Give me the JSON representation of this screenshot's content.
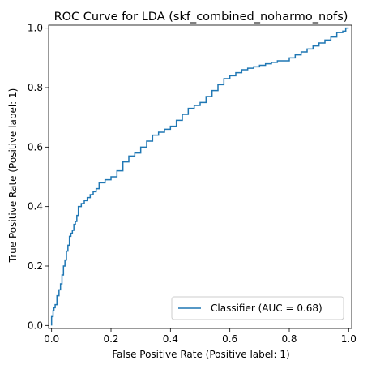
{
  "chart_data": {
    "type": "line",
    "title": "ROC Curve for LDA (skf_combined_noharmo_nofs)",
    "xlabel": "False Positive Rate (Positive label: 1)",
    "ylabel": "True Positive Rate (Positive label: 1)",
    "xlim": [
      -0.01,
      1.01
    ],
    "ylim": [
      -0.01,
      1.01
    ],
    "xticks": [
      0.0,
      0.2,
      0.4,
      0.6,
      0.8,
      1.0
    ],
    "yticks": [
      0.0,
      0.2,
      0.4,
      0.6,
      0.8,
      1.0
    ],
    "xtick_labels": [
      "0.0",
      "0.2",
      "0.4",
      "0.6",
      "0.8",
      "1.0"
    ],
    "ytick_labels": [
      "0.0",
      "0.2",
      "0.4",
      "0.6",
      "0.8",
      "1.0"
    ],
    "grid": false,
    "legend_position": "lower-right",
    "series": [
      {
        "name": "Classifier (AUC = 0.68)",
        "color": "#1f77b4",
        "x": [
          0.0,
          0.005,
          0.008,
          0.012,
          0.018,
          0.025,
          0.03,
          0.035,
          0.04,
          0.045,
          0.05,
          0.055,
          0.06,
          0.065,
          0.07,
          0.075,
          0.08,
          0.085,
          0.09,
          0.1,
          0.11,
          0.12,
          0.13,
          0.14,
          0.15,
          0.16,
          0.18,
          0.2,
          0.22,
          0.24,
          0.26,
          0.28,
          0.3,
          0.32,
          0.34,
          0.36,
          0.38,
          0.4,
          0.42,
          0.44,
          0.46,
          0.48,
          0.5,
          0.52,
          0.54,
          0.56,
          0.58,
          0.6,
          0.62,
          0.64,
          0.66,
          0.68,
          0.7,
          0.72,
          0.74,
          0.76,
          0.78,
          0.8,
          0.82,
          0.84,
          0.86,
          0.88,
          0.9,
          0.92,
          0.94,
          0.96,
          0.98,
          0.99,
          1.0
        ],
        "y": [
          0.0,
          0.03,
          0.05,
          0.06,
          0.07,
          0.1,
          0.12,
          0.14,
          0.17,
          0.2,
          0.22,
          0.25,
          0.27,
          0.3,
          0.31,
          0.32,
          0.34,
          0.35,
          0.37,
          0.4,
          0.41,
          0.42,
          0.43,
          0.44,
          0.45,
          0.46,
          0.48,
          0.49,
          0.5,
          0.52,
          0.55,
          0.57,
          0.58,
          0.6,
          0.62,
          0.64,
          0.65,
          0.66,
          0.67,
          0.69,
          0.71,
          0.73,
          0.74,
          0.75,
          0.77,
          0.79,
          0.81,
          0.83,
          0.84,
          0.85,
          0.86,
          0.865,
          0.87,
          0.875,
          0.88,
          0.885,
          0.89,
          0.89,
          0.9,
          0.91,
          0.92,
          0.93,
          0.94,
          0.95,
          0.96,
          0.97,
          0.985,
          0.99,
          1.0
        ]
      }
    ]
  }
}
